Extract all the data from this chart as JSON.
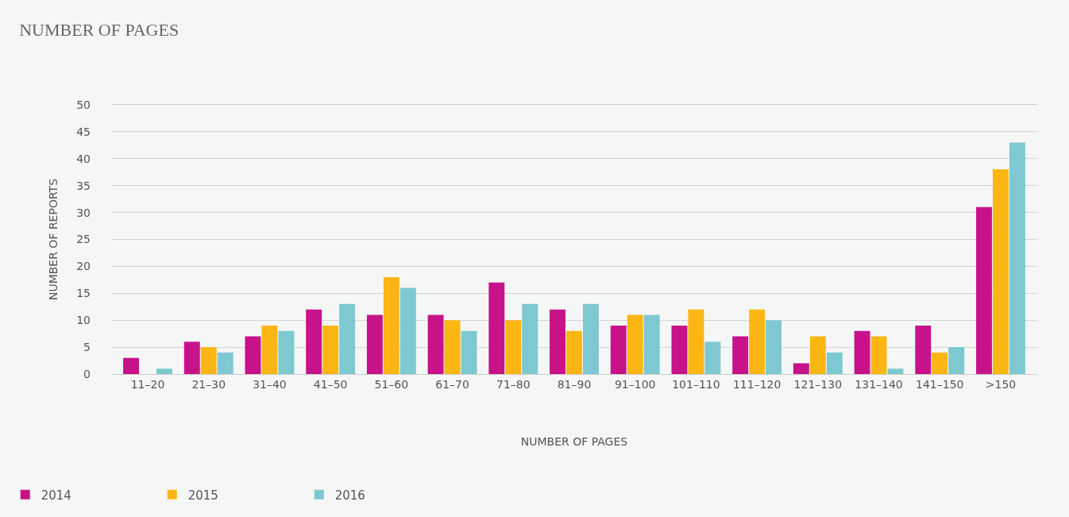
{
  "chart_data": {
    "type": "bar",
    "title": "NUMBER OF PAGES",
    "xlabel": "NUMBER OF PAGES",
    "ylabel": "NUMBER OF REPORTS",
    "categories": [
      "11–20",
      "21–30",
      "31–40",
      "41–50",
      "51–60",
      "61–70",
      "71–80",
      "81–90",
      "91–100",
      "101–110",
      "111–120",
      "121–130",
      "131–140",
      "141–150",
      ">150"
    ],
    "series": [
      {
        "name": "2014",
        "color": "#c7128a",
        "values": [
          3,
          6,
          7,
          12,
          11,
          11,
          17,
          12,
          9,
          9,
          7,
          2,
          8,
          9,
          31
        ]
      },
      {
        "name": "2015",
        "color": "#fbb614",
        "values": [
          0,
          5,
          9,
          9,
          18,
          10,
          10,
          8,
          11,
          12,
          12,
          7,
          7,
          4,
          38
        ]
      },
      {
        "name": "2016",
        "color": "#7dc8d1",
        "values": [
          1,
          4,
          8,
          13,
          16,
          8,
          13,
          13,
          11,
          6,
          10,
          4,
          1,
          5,
          43
        ]
      }
    ],
    "ylim": [
      0,
      50
    ],
    "yticks": [
      0,
      5,
      10,
      15,
      20,
      25,
      30,
      35,
      40,
      45,
      50
    ],
    "grid": "y",
    "legend": "bottom left"
  }
}
